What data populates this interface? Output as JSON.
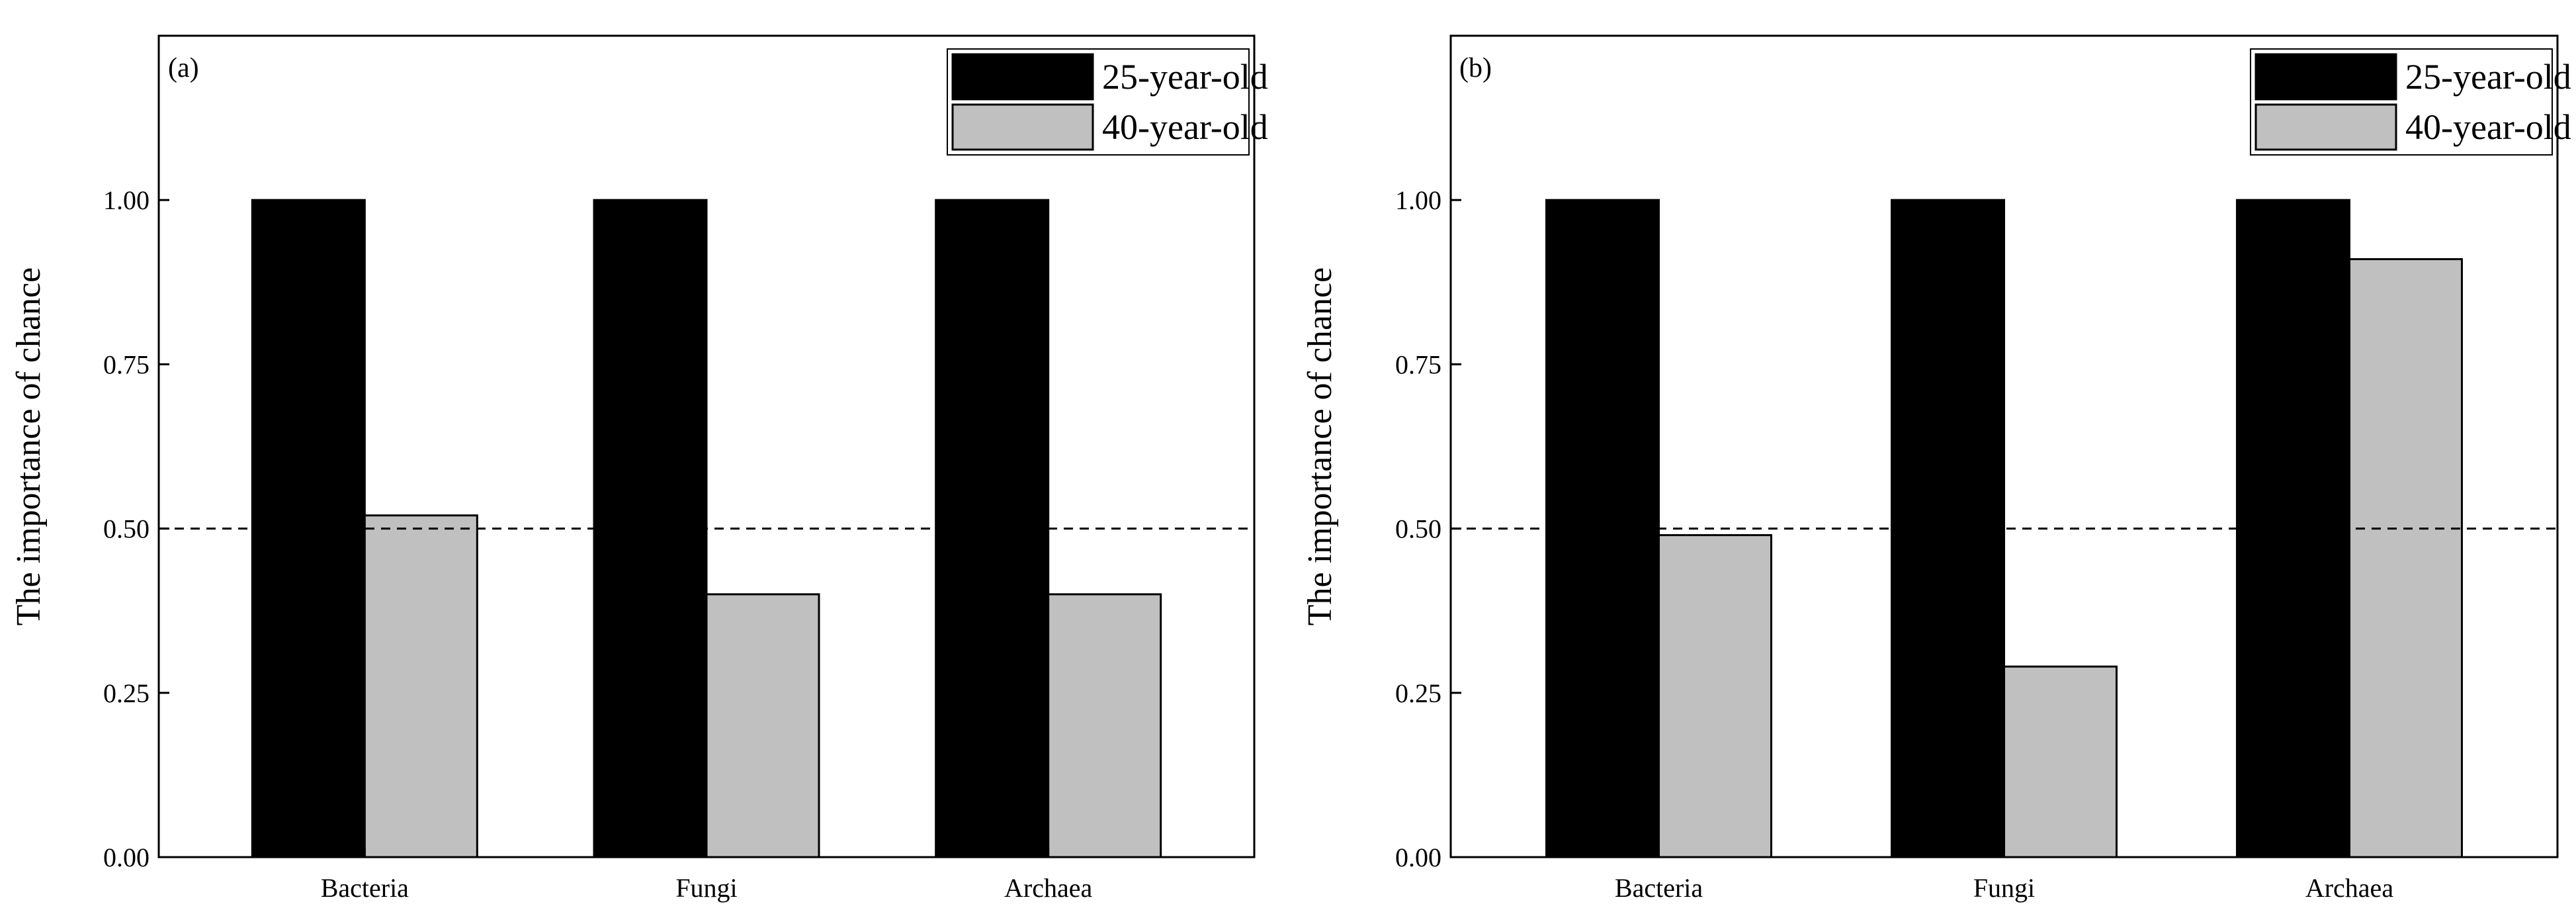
{
  "figure": {
    "panels_count": 2
  },
  "chart_data": [
    {
      "type": "bar",
      "panel_label": "(a)",
      "categories": [
        "Bacteria",
        "Fungi",
        "Archaea"
      ],
      "series": [
        {
          "name": "25-year-old",
          "values": [
            1.0,
            1.0,
            1.0
          ],
          "color": "#000000"
        },
        {
          "name": "40-year-old",
          "values": [
            0.52,
            0.4,
            0.4
          ],
          "color": "#c0c0c0"
        }
      ],
      "xlabel": "",
      "ylabel": "The importance of chance",
      "ylim": [
        0,
        1.25
      ],
      "yticks": [
        0.0,
        0.25,
        0.5,
        0.75,
        1.0
      ],
      "ytick_labels": [
        "0.00",
        "0.25",
        "0.50",
        "0.75",
        "1.00"
      ],
      "reference_line": {
        "y": 0.5,
        "style": "dashed"
      },
      "legend": {
        "position": "top-right",
        "entries": [
          "25-year-old",
          "40-year-old"
        ]
      },
      "grid": false
    },
    {
      "type": "bar",
      "panel_label": "(b)",
      "categories": [
        "Bacteria",
        "Fungi",
        "Archaea"
      ],
      "series": [
        {
          "name": "25-year-old",
          "values": [
            1.0,
            1.0,
            1.0
          ],
          "color": "#000000"
        },
        {
          "name": "40-year-old",
          "values": [
            0.49,
            0.29,
            0.91
          ],
          "color": "#c0c0c0"
        }
      ],
      "xlabel": "",
      "ylabel": "The importance of  chance",
      "ylim": [
        0,
        1.25
      ],
      "yticks": [
        0.0,
        0.25,
        0.5,
        0.75,
        1.0
      ],
      "ytick_labels": [
        "0.00",
        "0.25",
        "0.50",
        "0.75",
        "1.00"
      ],
      "reference_line": {
        "y": 0.5,
        "style": "dashed"
      },
      "legend": {
        "position": "top-right",
        "entries": [
          "25-year-old",
          "40-year-old"
        ]
      },
      "grid": false
    }
  ]
}
